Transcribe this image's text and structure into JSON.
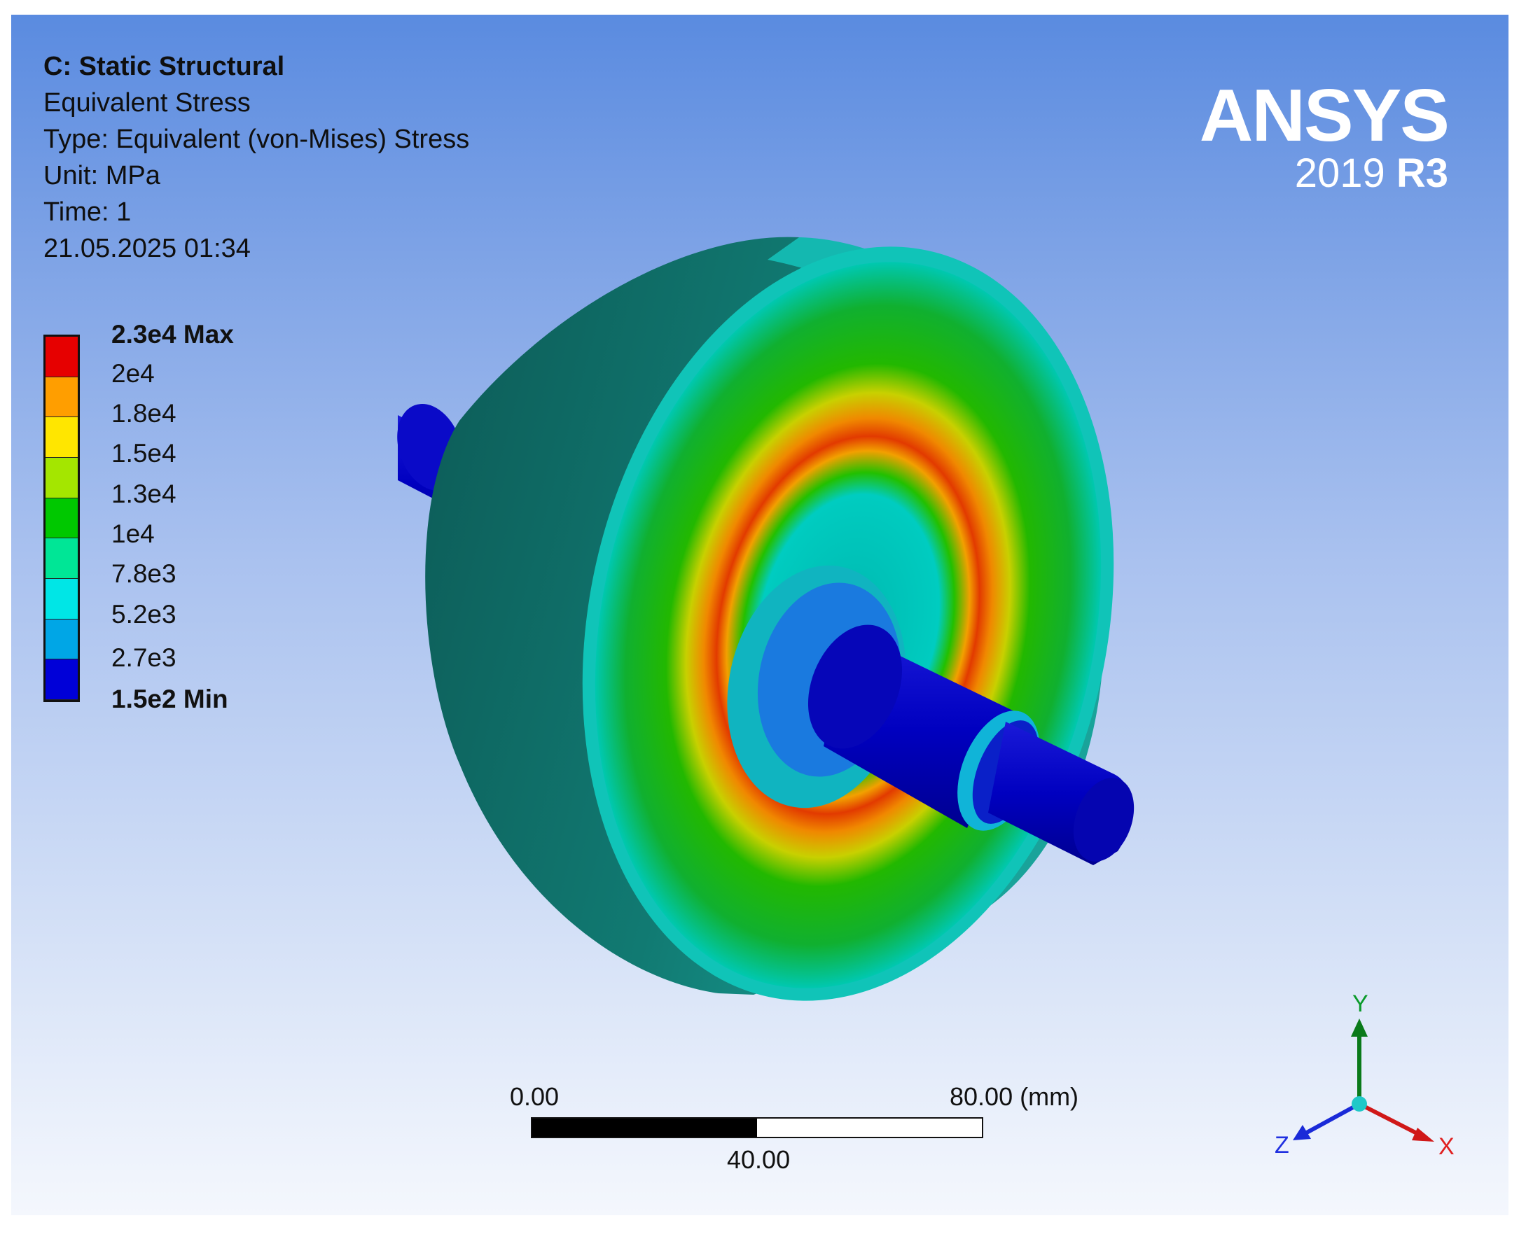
{
  "info": {
    "system": "C: Static Structural",
    "result": "Equivalent Stress",
    "type": "Type: Equivalent (von-Mises) Stress",
    "unit": "Unit: MPa",
    "time": "Time: 1",
    "timestamp": "21.05.2025 01:34"
  },
  "logo": {
    "brand": "ANSYS",
    "version_year": "2019 ",
    "version_release": "R3"
  },
  "legend": {
    "labels": [
      "2.3e4 Max",
      "2e4",
      "1.8e4",
      "1.5e4",
      "1.3e4",
      "1e4",
      "7.8e3",
      "5.2e3",
      "2.7e3",
      "1.5e2 Min"
    ],
    "colors": [
      "#e60000",
      "#ff9e00",
      "#ffe600",
      "#a4e600",
      "#00c800",
      "#00e696",
      "#00e6e6",
      "#00a6e6",
      "#0000d8"
    ]
  },
  "scale": {
    "left": "0.00",
    "right": "80.00 (mm)",
    "middle": "40.00"
  },
  "triad": {
    "y": "Y",
    "x": "X",
    "z": "Z"
  }
}
